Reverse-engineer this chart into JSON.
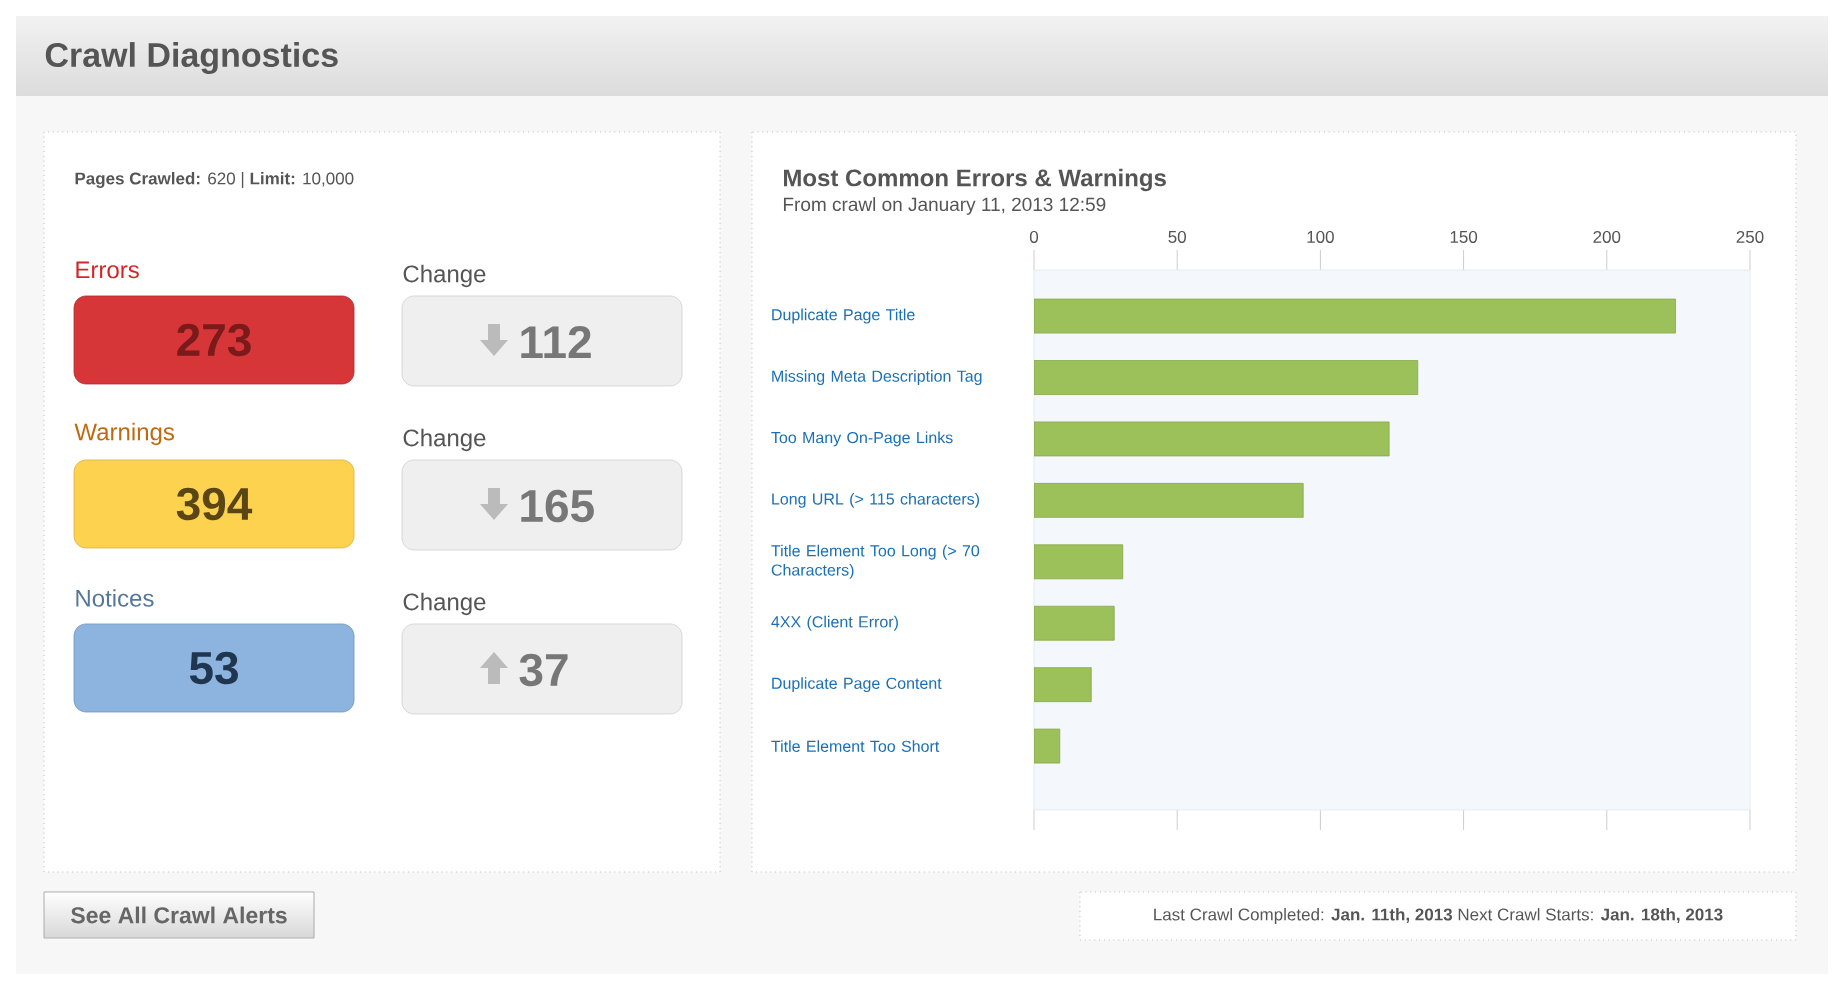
{
  "chart_data": [
    {
      "type": "other",
      "title": "Crawl Diagnostics",
      "annotations": [
        "**Pages Crawled:** 620 | **Limit:** 10,000",
        "Errors",
        "273",
        "Change",
        "112",
        "Warnings",
        "394",
        "Change",
        "165",
        "Notices",
        "53",
        "Change",
        "37",
        "See All Crawl Alerts",
        "Last Crawl Completed: **Jan. 11th, 2013** Next Crawl Starts: **Jan. 18th, 2013**"
      ]
    },
    {
      "type": "bar",
      "orientation": "horizontal",
      "title": "Most Common Errors & Warnings",
      "subtitle": "From crawl on January 11, 2013 12:59",
      "categories": [
        "Duplicate Page Title",
        "Missing Meta Description Tag",
        "Too Many On-Page Links",
        "Long URL (> 115 characters)",
        "Title Element Too Long (> 70 Characters)",
        "4XX (Client Error)",
        "Duplicate Page Content",
        "Title Element Too Short"
      ],
      "values": [
        224,
        134,
        124,
        94,
        31,
        28,
        20,
        9
      ],
      "color": "#9cc05a",
      "xlim": [
        0,
        250
      ],
      "xticks": [
        0,
        50,
        100,
        150,
        200,
        250
      ]
    }
  ]
}
